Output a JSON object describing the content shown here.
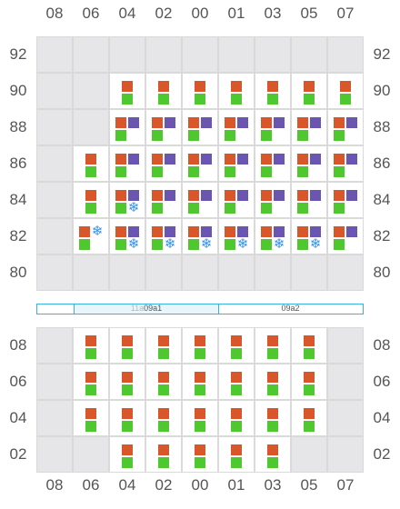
{
  "columns": [
    "08",
    "06",
    "04",
    "02",
    "00",
    "01",
    "03",
    "05",
    "07"
  ],
  "top_block": {
    "rows": [
      "92",
      "90",
      "88",
      "86",
      "84",
      "82",
      "80"
    ],
    "cells": [
      [
        "e",
        "e",
        "e",
        "e",
        "e",
        "e",
        "e",
        "e",
        "e"
      ],
      [
        "e",
        "e",
        "rg",
        "rg",
        "rg",
        "rg",
        "rg",
        "rg",
        "rg"
      ],
      [
        "e",
        "e",
        "rpg",
        "rpg",
        "rpg",
        "rpg",
        "rpg",
        "rpg",
        "rpg"
      ],
      [
        "e",
        "rg",
        "rpg",
        "rpg",
        "rpg",
        "rpg",
        "rpg",
        "rpg",
        "rpg"
      ],
      [
        "e",
        "rg",
        "rpgs",
        "rpg",
        "rpg",
        "rpg",
        "rpg",
        "rpg",
        "rpg"
      ],
      [
        "e",
        "rsg",
        "rpgs",
        "rpgs",
        "rpgs",
        "rpgs",
        "rpgs",
        "rpgs",
        "rpg"
      ],
      [
        "e",
        "e",
        "e",
        "e",
        "e",
        "e",
        "e",
        "e",
        "e"
      ]
    ]
  },
  "bottom_block": {
    "rows": [
      "08",
      "06",
      "04",
      "02"
    ],
    "cells": [
      [
        "e",
        "rg",
        "rg",
        "rg",
        "rg",
        "rg",
        "rg",
        "rg",
        "e"
      ],
      [
        "e",
        "rg",
        "rg",
        "rg",
        "rg",
        "rg",
        "rg",
        "rg",
        "e"
      ],
      [
        "e",
        "rg",
        "rg",
        "rg",
        "rg",
        "rg",
        "rg",
        "rg",
        "e"
      ],
      [
        "e",
        "e",
        "rg",
        "rg",
        "rg",
        "rg",
        "rg",
        "e",
        "e"
      ]
    ]
  },
  "strip": {
    "ghost_label": "11a",
    "segment1_label": "09a1",
    "segment2_label": "09a2"
  },
  "colors": {
    "red_square": "#d9552a",
    "green_square": "#4fc72f",
    "purple_square": "#6a56b0",
    "snowflake": "#3b8fe0",
    "strip_border": "#3ab2e0"
  },
  "icons": {
    "snowflake": "snowflake-icon"
  }
}
